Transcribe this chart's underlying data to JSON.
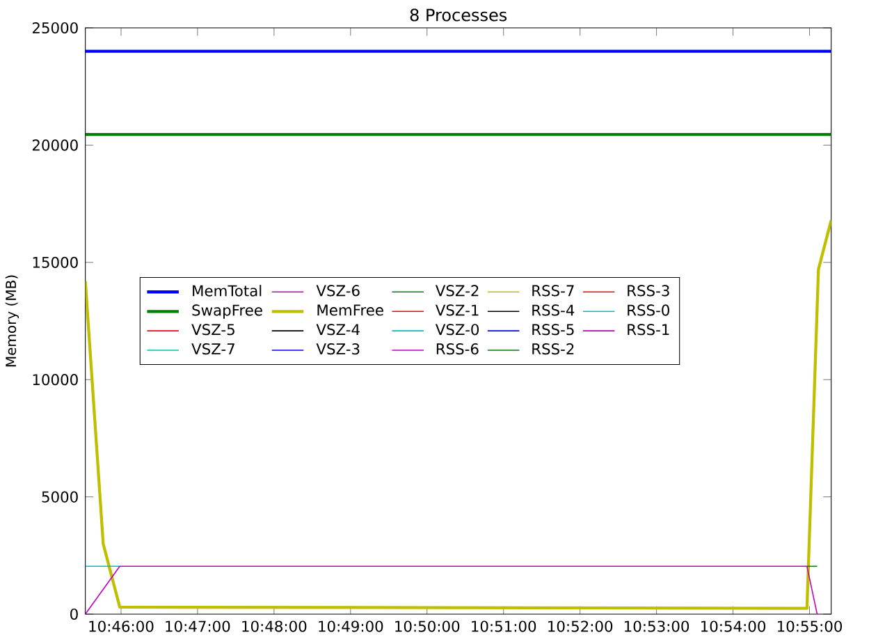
{
  "chart_data": {
    "type": "line",
    "title": "8 Processes",
    "ylabel": "Memory (MB)",
    "xlim": [
      10.75889,
      10.92139
    ],
    "ylim": [
      0,
      25000
    ],
    "xticks": [
      {
        "value": 10.76667,
        "label": "10:46:00"
      },
      {
        "value": 10.78333,
        "label": "10:47:00"
      },
      {
        "value": 10.8,
        "label": "10:48:00"
      },
      {
        "value": 10.81667,
        "label": "10:49:00"
      },
      {
        "value": 10.83333,
        "label": "10:50:00"
      },
      {
        "value": 10.85,
        "label": "10:51:00"
      },
      {
        "value": 10.86667,
        "label": "10:52:00"
      },
      {
        "value": 10.88333,
        "label": "10:53:00"
      },
      {
        "value": 10.9,
        "label": "10:54:00"
      },
      {
        "value": 10.91667,
        "label": "10:55:00"
      }
    ],
    "yticks": [
      0,
      5000,
      10000,
      15000,
      20000,
      25000
    ],
    "legend": "center",
    "grid": false,
    "marker": "none",
    "line_style": "solid",
    "series": [
      {
        "name": "MemTotal",
        "color": "#0000ff",
        "x": [
          10.75889,
          10.92139
        ],
        "values": [
          24000,
          24000
        ]
      },
      {
        "name": "SwapFree",
        "color": "#008000",
        "x": [
          10.75889,
          10.92139
        ],
        "values": [
          20450,
          20450
        ]
      },
      {
        "name": "VSZ-5",
        "color": "#ff0000",
        "values": [
          null
        ]
      },
      {
        "name": "VSZ-7",
        "color": "#00bfbf",
        "values": [
          null
        ]
      },
      {
        "name": "VSZ-6",
        "color": "#bf00bf",
        "values": [
          null
        ]
      },
      {
        "name": "MemFree",
        "color": "#bfbf00",
        "x": [
          10.75889,
          10.76278,
          10.76639,
          10.91611,
          10.91861,
          10.92139
        ],
        "values": [
          14200,
          3000,
          300,
          250,
          14700,
          16800
        ]
      },
      {
        "name": "VSZ-4",
        "color": "#000000",
        "values": [
          null
        ]
      },
      {
        "name": "VSZ-3",
        "color": "#0000ff",
        "values": [
          null
        ]
      },
      {
        "name": "VSZ-2",
        "color": "#008000",
        "x": [
          10.91611,
          10.91833
        ],
        "values": [
          2040,
          2040
        ]
      },
      {
        "name": "VSZ-1",
        "color": "#ff0000",
        "values": [
          null
        ]
      },
      {
        "name": "VSZ-0",
        "color": "#00bfbf",
        "x": [
          10.75889,
          10.76639
        ],
        "values": [
          2040,
          2040
        ]
      },
      {
        "name": "RSS-6",
        "color": "#bf00bf",
        "values": [
          null
        ]
      },
      {
        "name": "RSS-7",
        "color": "#bfbf00",
        "values": [
          null
        ]
      },
      {
        "name": "RSS-4",
        "color": "#000000",
        "values": [
          null
        ]
      },
      {
        "name": "RSS-5",
        "color": "#0000ff",
        "values": [
          null
        ]
      },
      {
        "name": "RSS-2",
        "color": "#008000",
        "values": [
          null
        ]
      },
      {
        "name": "RSS-3",
        "color": "#ff0000",
        "values": [
          null
        ]
      },
      {
        "name": "RSS-0",
        "color": "#00bfbf",
        "values": [
          null
        ]
      },
      {
        "name": "RSS-1",
        "color": "#bf00bf",
        "x": [
          10.75889,
          10.76639,
          10.91611,
          10.91833
        ],
        "values": [
          0,
          2040,
          2040,
          0
        ]
      }
    ]
  }
}
